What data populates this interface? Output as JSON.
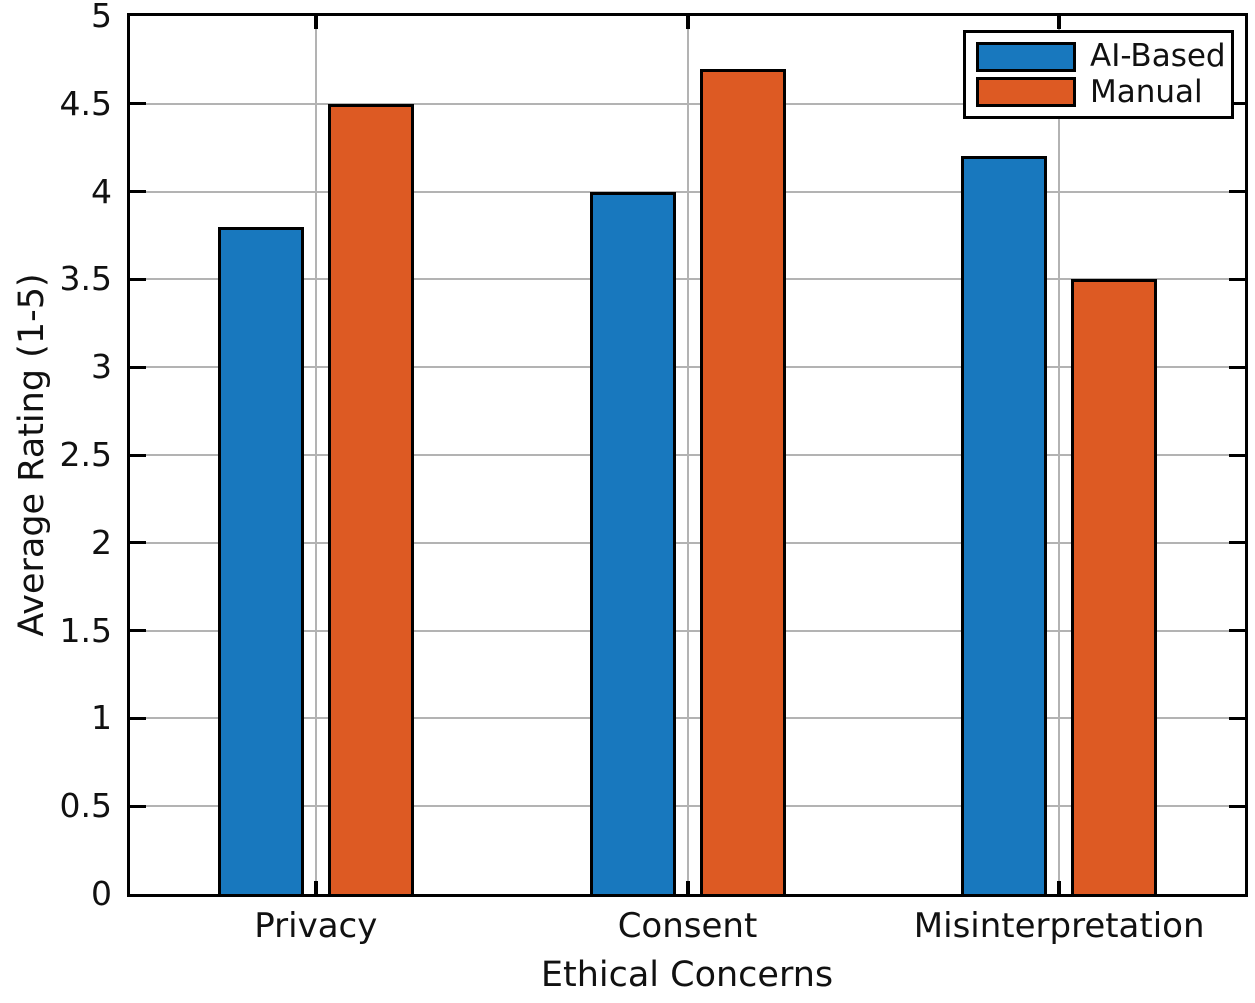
{
  "chart_data": {
    "type": "bar",
    "title": "",
    "categories": [
      "Privacy",
      "Consent",
      "Misinterpretation"
    ],
    "series": [
      {
        "name": "AI-Based",
        "color": "#1878BE",
        "values": [
          3.8,
          4.0,
          4.2
        ]
      },
      {
        "name": "Manual",
        "color": "#DD5A23",
        "values": [
          4.5,
          4.7,
          3.5
        ]
      }
    ],
    "xlabel": "Ethical Concerns",
    "ylabel": "Average Rating (1-5)",
    "ylim": [
      0,
      5
    ],
    "yticks": [
      0,
      0.5,
      1,
      1.5,
      2,
      2.5,
      3,
      3.5,
      4,
      4.5,
      5
    ],
    "grid": true,
    "legend_position": "top-right",
    "colors": {
      "gridline": "#b3b3b3",
      "axis": "#000000",
      "background": "#ffffff"
    }
  }
}
